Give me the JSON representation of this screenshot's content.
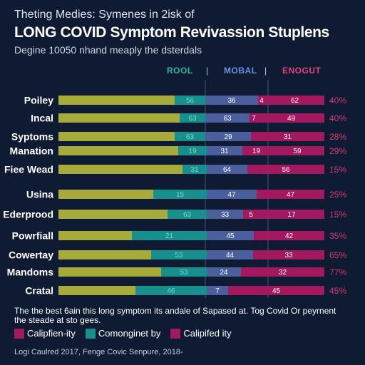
{
  "header": {
    "kicker": "Theting Medies: Symenes in 2isk of",
    "title": "LONG COVID Symptom Revivassion Stuplens",
    "subtitle": "Degine 10050 nhand meaply the dsterdals"
  },
  "columns": {
    "c1": "ROOL",
    "c2": "MOBAL",
    "c3": "ENOGUT",
    "separator": "|"
  },
  "colors": {
    "olive": "#a6ab3c",
    "teal": "#178f8c",
    "blue": "#4a5f9c",
    "magenta": "#a3195f",
    "pct": "#d63b6e",
    "background": "#0f1b33"
  },
  "chart_data": {
    "type": "bar",
    "stacked": true,
    "orientation": "horizontal",
    "categories": [
      "Poiley",
      "Incal",
      "Syptoms",
      "Manation",
      "Fiee Wead",
      "Usina",
      "Ederprood",
      "Powrfiall",
      "Cowertay",
      "Mandoms",
      "Cratal"
    ],
    "segment_labels": [
      [
        "",
        "56",
        "36",
        "4",
        "62"
      ],
      [
        "",
        "63",
        "63",
        "7",
        "49"
      ],
      [
        "",
        "63",
        "29",
        "",
        "31"
      ],
      [
        "",
        "19",
        "31",
        "19",
        "59"
      ],
      [
        "",
        "31",
        "64",
        "",
        "56"
      ],
      [
        "",
        "15",
        "47",
        "",
        "47"
      ],
      [
        "",
        "63",
        "33",
        "5",
        "17"
      ],
      [
        "",
        "21",
        "45",
        "",
        "42"
      ],
      [
        "",
        "53",
        "44",
        "",
        "33"
      ],
      [
        "",
        "53",
        "24",
        "",
        "32"
      ],
      [
        "",
        "46",
        "7",
        "",
        "45"
      ]
    ],
    "percentages": [
      "40%",
      "40%",
      "28%",
      "29%",
      "15%",
      "25%",
      "15%",
      "35%",
      "65%",
      "77%",
      "45%"
    ]
  },
  "footnote": "The the best 6ain this long symptom its andale of Sapased at. Tog Covid Or peyrnent the steade at sto gees.",
  "legend": [
    {
      "label": "Calipfien-ity",
      "color": "#a3195f"
    },
    {
      "label": "Comonginet by",
      "color": "#178f8c"
    },
    {
      "label": "Calipifed ity",
      "color": "#a3195f"
    }
  ],
  "source": "Logi Caulred 2017, Fenge Covic Senpure, 2018-"
}
